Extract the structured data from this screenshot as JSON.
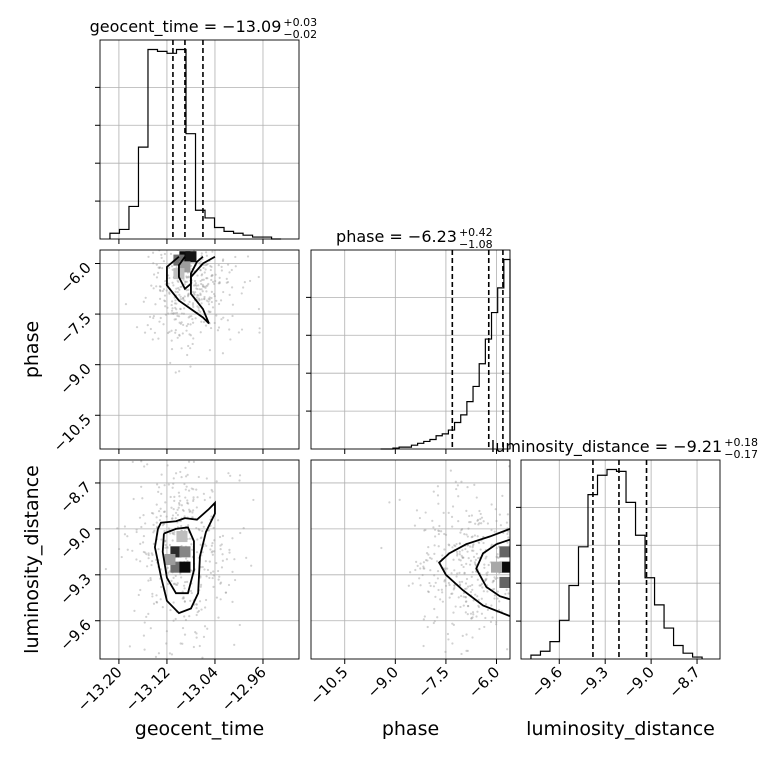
{
  "chart_data": {
    "type": "corner",
    "parameters": [
      {
        "name": "geocent_time",
        "title_text": "geocent_time = −13.09",
        "err_plus": "+0.03",
        "err_minus": "−0.02",
        "median": -13.09,
        "quantiles": [
          -13.11,
          -13.09,
          -13.06
        ],
        "xlim": [
          -13.2315,
          -12.9
        ],
        "ticks": [
          -13.2,
          -13.12,
          -13.04,
          -12.96
        ],
        "tick_labels": [
          "−13.20",
          "−13.12",
          "−13.04",
          "−12.96"
        ],
        "hist_counts": [
          3,
          5,
          17,
          48,
          99,
          98,
          97,
          99,
          55,
          15,
          11,
          6,
          4,
          3,
          2,
          1,
          1,
          0
        ]
      },
      {
        "name": "phase",
        "title_text": "phase = −6.23",
        "err_plus": "+0.42",
        "err_minus": "−1.08",
        "median": -6.23,
        "quantiles": [
          -7.31,
          -6.23,
          -5.81
        ],
        "xlim": [
          -11.5,
          -5.6
        ],
        "ticks": [
          -10.5,
          -9.0,
          -7.5,
          -6.0
        ],
        "tick_labels": [
          "−10.5",
          "−9.0",
          "−7.5",
          "−6.0"
        ],
        "hist_counts": [
          0,
          0,
          0.5,
          1,
          1,
          2,
          3,
          4,
          5,
          7,
          8,
          10,
          14,
          18,
          25,
          33,
          45,
          58,
          72,
          85,
          100
        ]
      },
      {
        "name": "luminosity_distance",
        "title_text": "luminosity_distance = −9.21",
        "err_plus": "+0.18",
        "err_minus": "−0.17",
        "median": -9.21,
        "quantiles": [
          -9.38,
          -9.21,
          -9.03
        ],
        "xlim": [
          -9.85,
          -8.55
        ],
        "ticks": [
          -9.6,
          -9.3,
          -9.0,
          -8.7
        ],
        "tick_labels": [
          "−9.6",
          "−9.3",
          "−9.0",
          "−8.7"
        ],
        "hist_counts": [
          2,
          4,
          9,
          20,
          38,
          58,
          85,
          95,
          98,
          97,
          81,
          64,
          42,
          28,
          16,
          7,
          3,
          1
        ]
      }
    ],
    "axis_labels": [
      "geocent_time",
      "phase",
      "luminosity_distance"
    ],
    "grid": true,
    "pairs": [
      {
        "x_param": "geocent_time",
        "y_param": "phase",
        "contours": [
          [
            [
              -13.1,
              -5.8
            ],
            [
              -13.12,
              -6.1
            ],
            [
              -13.12,
              -6.65
            ],
            [
              -13.1,
              -7.1
            ],
            [
              -13.06,
              -7.6
            ],
            [
              -13.05,
              -7.78
            ],
            [
              -13.06,
              -7.35
            ],
            [
              -13.08,
              -6.9
            ],
            [
              -13.08,
              -6.4
            ],
            [
              -13.06,
              -6.0
            ],
            [
              -13.04,
              -5.8
            ]
          ],
          [
            [
              -13.09,
              -5.8
            ],
            [
              -13.1,
              -6.05
            ],
            [
              -13.1,
              -6.4
            ],
            [
              -13.09,
              -6.75
            ],
            [
              -13.08,
              -6.6
            ],
            [
              -13.08,
              -6.3
            ],
            [
              -13.07,
              -5.95
            ],
            [
              -13.06,
              -5.8
            ]
          ]
        ],
        "cells": [
          {
            "x": -13.09,
            "y": -5.8,
            "d": 1.0
          },
          {
            "x": -13.08,
            "y": -5.8,
            "d": 0.95
          },
          {
            "x": -13.1,
            "y": -5.9,
            "d": 0.55
          },
          {
            "x": -13.09,
            "y": -6.1,
            "d": 0.35
          },
          {
            "x": -13.1,
            "y": -6.3,
            "d": 0.2
          }
        ]
      },
      {
        "x_param": "geocent_time",
        "y_param": "luminosity_distance",
        "contours": [
          [
            [
              -13.135,
              -9.0
            ],
            [
              -13.13,
              -8.96
            ],
            [
              -13.105,
              -8.95
            ],
            [
              -13.09,
              -8.93
            ],
            [
              -13.07,
              -8.94
            ],
            [
              -13.05,
              -8.87
            ],
            [
              -13.04,
              -8.83
            ],
            [
              -13.04,
              -8.9
            ],
            [
              -13.055,
              -9.02
            ],
            [
              -13.065,
              -9.18
            ],
            [
              -13.068,
              -9.42
            ],
            [
              -13.08,
              -9.52
            ],
            [
              -13.1,
              -9.55
            ],
            [
              -13.12,
              -9.47
            ],
            [
              -13.13,
              -9.31
            ],
            [
              -13.14,
              -9.12
            ],
            [
              -13.135,
              -9.0
            ]
          ],
          [
            [
              -13.125,
              -9.03
            ],
            [
              -13.105,
              -9.0
            ],
            [
              -13.085,
              -8.99
            ],
            [
              -13.075,
              -9.08
            ],
            [
              -13.075,
              -9.27
            ],
            [
              -13.085,
              -9.42
            ],
            [
              -13.105,
              -9.42
            ],
            [
              -13.12,
              -9.32
            ],
            [
              -13.127,
              -9.15
            ],
            [
              -13.125,
              -9.03
            ]
          ]
        ],
        "cells": [
          {
            "x": -13.105,
            "y": -9.15,
            "d": 0.85
          },
          {
            "x": -13.105,
            "y": -9.25,
            "d": 0.55
          },
          {
            "x": -13.09,
            "y": -9.25,
            "d": 1.0
          },
          {
            "x": -13.09,
            "y": -9.15,
            "d": 0.45
          },
          {
            "x": -13.115,
            "y": -9.2,
            "d": 0.35
          },
          {
            "x": -13.095,
            "y": -9.05,
            "d": 0.2
          }
        ]
      },
      {
        "x_param": "phase",
        "y_param": "luminosity_distance",
        "contours": [
          [
            [
              -5.6,
              -9.0
            ],
            [
              -6.2,
              -9.05
            ],
            [
              -6.9,
              -9.1
            ],
            [
              -7.4,
              -9.16
            ],
            [
              -7.7,
              -9.22
            ],
            [
              -7.5,
              -9.3
            ],
            [
              -7.0,
              -9.4
            ],
            [
              -6.4,
              -9.5
            ],
            [
              -5.6,
              -9.57
            ]
          ],
          [
            [
              -5.6,
              -9.07
            ],
            [
              -6.0,
              -9.1
            ],
            [
              -6.4,
              -9.16
            ],
            [
              -6.6,
              -9.26
            ],
            [
              -6.3,
              -9.38
            ],
            [
              -5.9,
              -9.44
            ],
            [
              -5.6,
              -9.46
            ]
          ]
        ],
        "cells": [
          {
            "x": -5.75,
            "y": -9.25,
            "d": 1.0
          },
          {
            "x": -5.75,
            "y": -9.15,
            "d": 0.6
          },
          {
            "x": -5.75,
            "y": -9.35,
            "d": 0.6
          },
          {
            "x": -6.0,
            "y": -9.25,
            "d": 0.3
          }
        ]
      }
    ]
  }
}
